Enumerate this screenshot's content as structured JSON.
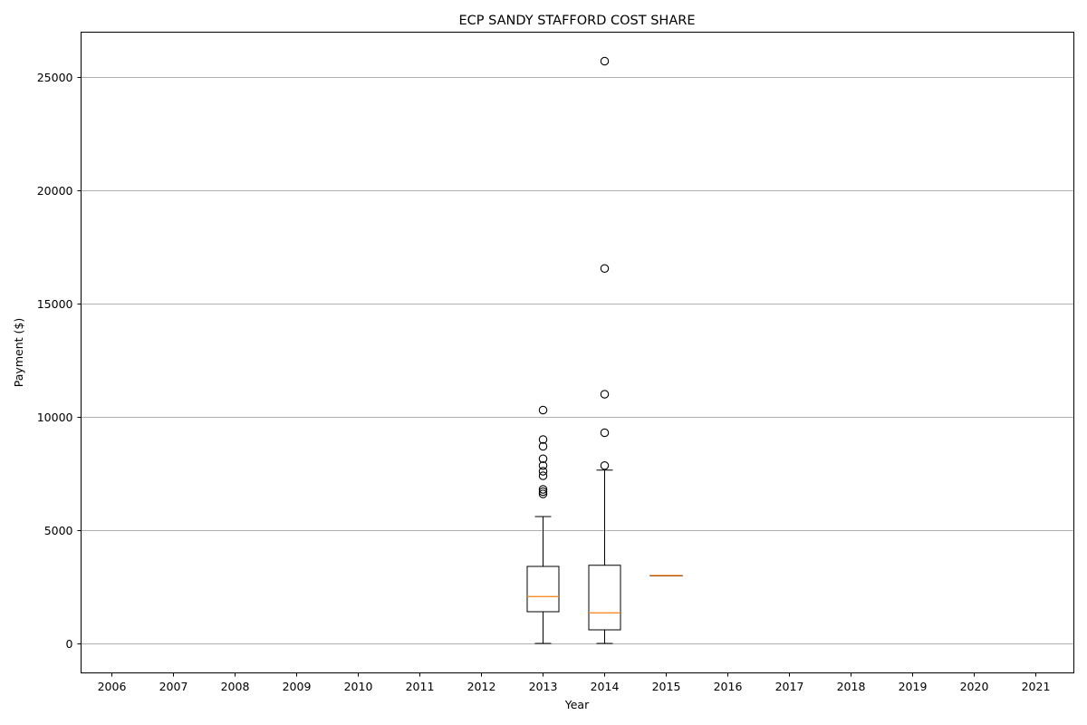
{
  "chart_data": {
    "type": "box",
    "title": "ECP SANDY STAFFORD COST SHARE",
    "xlabel": "Year",
    "ylabel": "Payment ($)",
    "categories": [
      "2006",
      "2007",
      "2008",
      "2009",
      "2010",
      "2011",
      "2012",
      "2013",
      "2014",
      "2015",
      "2016",
      "2017",
      "2018",
      "2019",
      "2020",
      "2021"
    ],
    "yticks": [
      0,
      5000,
      10000,
      15000,
      20000,
      25000
    ],
    "ylim": [
      -1300,
      27000
    ],
    "grid": "horizontal",
    "legend": "none",
    "colors": {
      "box": "#000000",
      "median": "#ff7f0e",
      "grid": "#b0b0b0"
    },
    "boxes": [
      {
        "category": "2013",
        "whisker_low": 0,
        "q1": 1400,
        "median": 2070,
        "q3": 3400,
        "whisker_high": 5600,
        "outliers": [
          6600,
          6700,
          6800,
          7400,
          7600,
          7850,
          8150,
          8700,
          9000,
          10300
        ]
      },
      {
        "category": "2014",
        "whisker_low": 0,
        "q1": 600,
        "median": 1350,
        "q3": 3450,
        "whisker_high": 7650,
        "outliers": [
          7850,
          9300,
          11000,
          16550,
          25700
        ]
      },
      {
        "category": "2015",
        "whisker_low": 3000,
        "q1": 3000,
        "median": 3000,
        "q3": 3000,
        "whisker_high": 3000,
        "outliers": []
      }
    ]
  }
}
